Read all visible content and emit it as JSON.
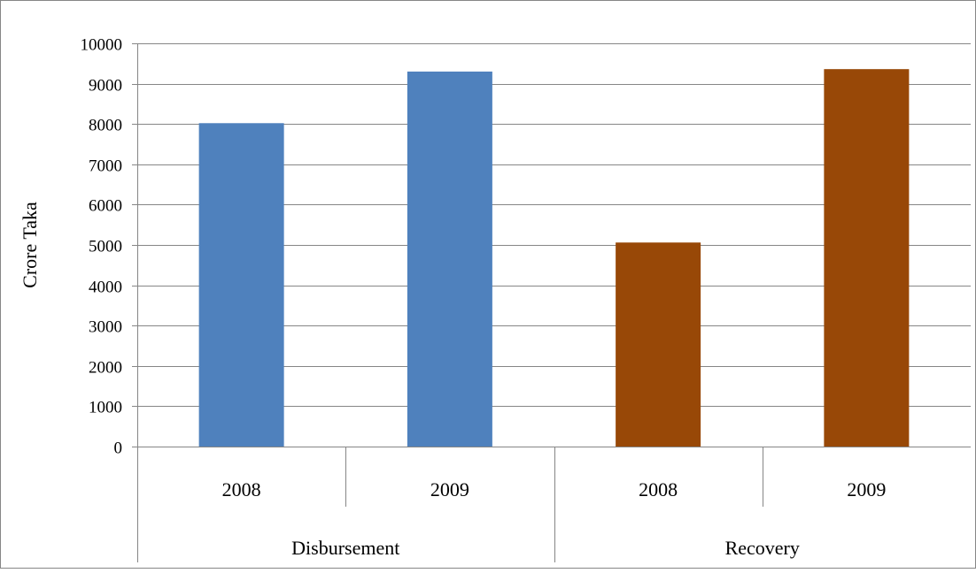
{
  "chart_data": {
    "type": "bar",
    "groups": [
      "Disbursement",
      "Recovery"
    ],
    "categories": [
      "2008",
      "2009",
      "2008",
      "2009"
    ],
    "values": [
      8020,
      9300,
      5060,
      9360
    ],
    "group_of_category": [
      0,
      0,
      1,
      1
    ],
    "colors": {
      "Disbursement": "#4F81BD",
      "Recovery": "#984807"
    },
    "ylabel": "Crore Taka",
    "xlabel": "",
    "title": "",
    "ylim": [
      0,
      10000
    ],
    "yticks": [
      "0",
      "1000",
      "2000",
      "3000",
      "4000",
      "5000",
      "6000",
      "7000",
      "8000",
      "9000",
      "10000"
    ],
    "grid": true,
    "legend": "none"
  }
}
